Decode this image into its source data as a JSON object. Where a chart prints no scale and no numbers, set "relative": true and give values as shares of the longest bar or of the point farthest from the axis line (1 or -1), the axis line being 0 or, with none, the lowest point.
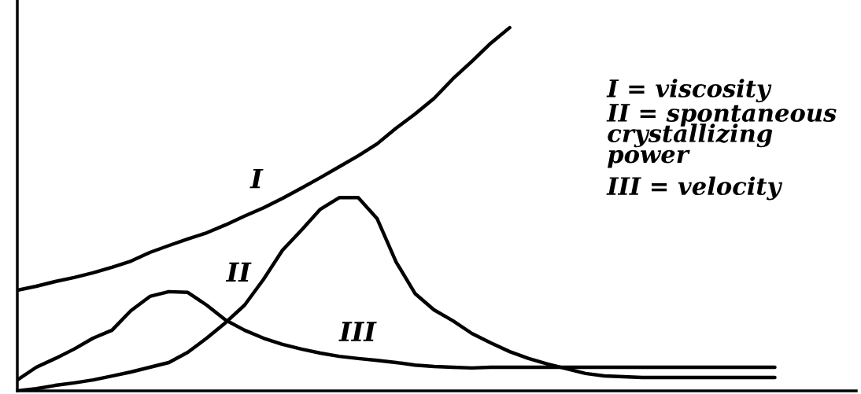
{
  "chart_data": {
    "type": "line",
    "relative": true,
    "categories": [
      null,
      null,
      null,
      null,
      null,
      null,
      null,
      null,
      null,
      null,
      null,
      null,
      null,
      null,
      null,
      null,
      null,
      null,
      null,
      null,
      null,
      null,
      null,
      null,
      null,
      null,
      null,
      null,
      null,
      null,
      null,
      null,
      null,
      null,
      null,
      null,
      null,
      null,
      null,
      null,
      null
    ],
    "series": [
      {
        "name": "I",
        "color": "#000000",
        "values": [
          0.277,
          0.288,
          0.301,
          0.312,
          0.325,
          0.34,
          0.357,
          0.381,
          0.4,
          0.418,
          0.435,
          0.457,
          0.481,
          0.504,
          0.53,
          0.558,
          0.587,
          0.617,
          0.647,
          0.68,
          0.723,
          0.762,
          0.805,
          0.859,
          0.907,
          0.957,
          1.0,
          null,
          null,
          null,
          null,
          null,
          null,
          null,
          null,
          null,
          null,
          null,
          null,
          null,
          null
        ]
      },
      {
        "name": "II",
        "color": "#000000",
        "values": [
          0,
          0.006,
          0.015,
          0.022,
          0.03,
          0.041,
          0.052,
          0.065,
          0.078,
          0.106,
          0.145,
          0.188,
          0.236,
          0.307,
          0.387,
          0.442,
          0.5,
          0.532,
          0.532,
          0.474,
          0.355,
          0.268,
          0.223,
          0.193,
          0.158,
          0.132,
          0.108,
          0.089,
          0.074,
          0.061,
          0.048,
          0.041,
          0.039,
          0.037,
          0.037,
          0.037,
          0.037,
          0.037,
          0.037,
          0.037,
          0.037
        ]
      },
      {
        "name": "III",
        "color": "#000000",
        "values": [
          0.03,
          0.065,
          0.089,
          0.115,
          0.145,
          0.167,
          0.221,
          0.26,
          0.273,
          0.271,
          0.236,
          0.195,
          0.167,
          0.145,
          0.128,
          0.115,
          0.104,
          0.095,
          0.089,
          0.084,
          0.078,
          0.071,
          0.067,
          0.065,
          0.063,
          0.065,
          0.065,
          0.065,
          0.065,
          0.065,
          0.065,
          0.065,
          0.065,
          0.065,
          0.065,
          0.065,
          0.065,
          0.065,
          0.065,
          0.065,
          0.065
        ]
      }
    ],
    "annotations": [
      "I = viscosity",
      "II = spontaneous\ncrystallizing\npower",
      "III = velocity"
    ],
    "legend": false,
    "marker": "none",
    "line_style": "solid"
  }
}
